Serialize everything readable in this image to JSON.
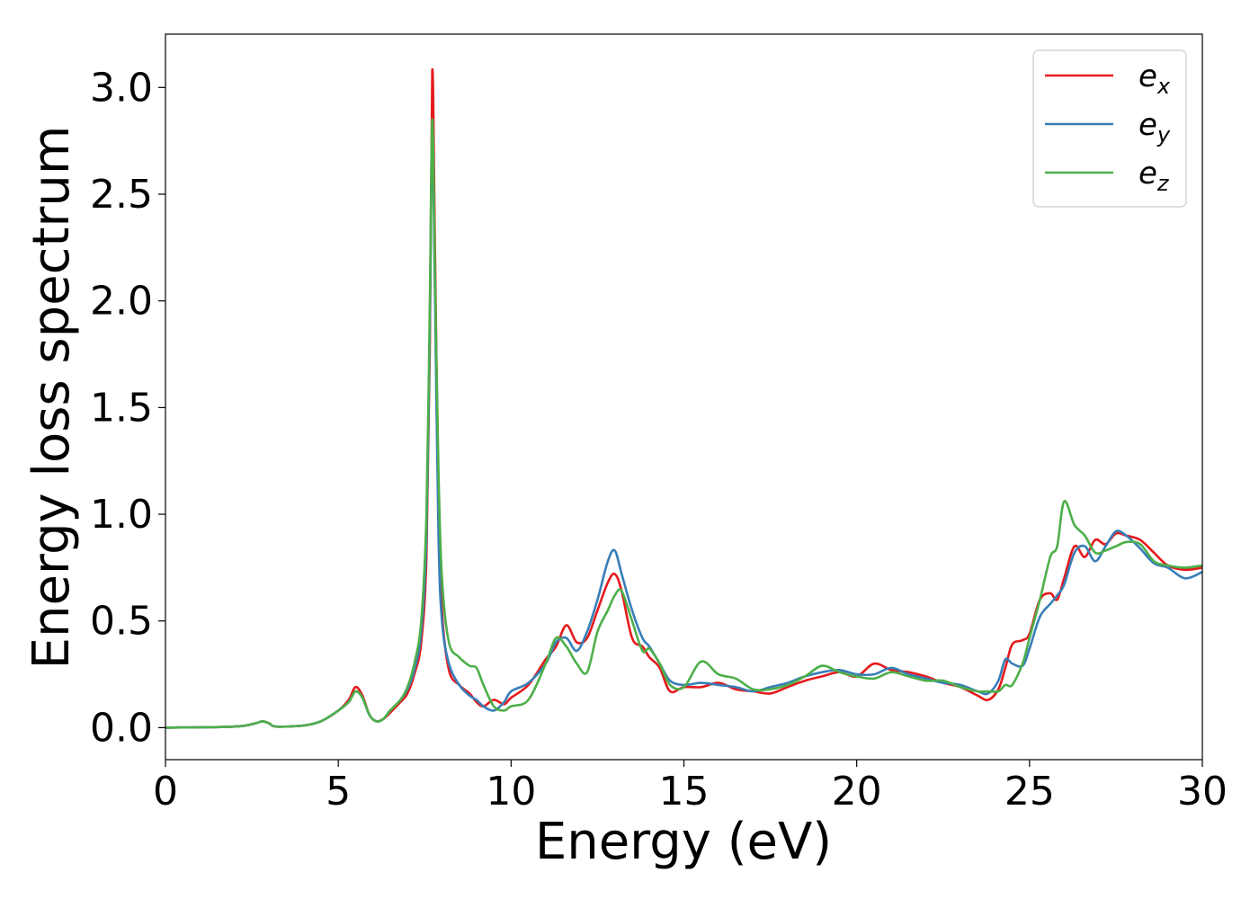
{
  "chart_data": {
    "type": "line",
    "title": "",
    "xlabel": "Energy (eV)",
    "ylabel": "Energy loss spectrum",
    "xlim": [
      0,
      30
    ],
    "ylim": [
      -0.15,
      3.25
    ],
    "xticks": [
      0,
      5,
      10,
      15,
      20,
      25,
      30
    ],
    "xtick_labels": [
      "0",
      "5",
      "10",
      "15",
      "20",
      "25",
      "30"
    ],
    "yticks": [
      0.0,
      0.5,
      1.0,
      1.5,
      2.0,
      2.5,
      3.0
    ],
    "ytick_labels": [
      "0.0",
      "0.5",
      "1.0",
      "1.5",
      "2.0",
      "2.5",
      "3.0"
    ],
    "grid": false,
    "legend_position": "top-right",
    "series": [
      {
        "name": "e",
        "subscript": "x",
        "color": "#e41a1c",
        "x": [
          0,
          2.0,
          2.6,
          2.8,
          3.0,
          3.2,
          4.0,
          4.5,
          5.0,
          5.3,
          5.5,
          5.7,
          5.9,
          6.1,
          6.3,
          6.5,
          6.8,
          7.0,
          7.2,
          7.4,
          7.55,
          7.65,
          7.72,
          7.8,
          7.9,
          8.0,
          8.2,
          8.5,
          8.8,
          9.0,
          9.2,
          9.5,
          9.8,
          10.0,
          10.5,
          11.0,
          11.3,
          11.6,
          11.9,
          12.2,
          12.5,
          12.8,
          13.0,
          13.2,
          13.5,
          13.8,
          14.0,
          14.3,
          14.6,
          15.0,
          15.5,
          16.0,
          16.5,
          17.0,
          17.5,
          18.0,
          18.5,
          19.0,
          19.5,
          20.0,
          20.5,
          21.0,
          21.5,
          22.0,
          22.5,
          23.0,
          23.5,
          23.8,
          24.1,
          24.3,
          24.5,
          24.8,
          25.0,
          25.3,
          25.6,
          25.8,
          26.0,
          26.3,
          26.6,
          26.9,
          27.2,
          27.5,
          27.8,
          28.2,
          28.6,
          29.0,
          29.5,
          30.0
        ],
        "y": [
          0.0,
          0.005,
          0.02,
          0.03,
          0.02,
          0.005,
          0.01,
          0.03,
          0.08,
          0.13,
          0.19,
          0.15,
          0.06,
          0.03,
          0.04,
          0.07,
          0.12,
          0.16,
          0.25,
          0.4,
          0.8,
          1.8,
          3.08,
          2.2,
          1.1,
          0.55,
          0.27,
          0.2,
          0.16,
          0.12,
          0.1,
          0.13,
          0.11,
          0.14,
          0.2,
          0.32,
          0.38,
          0.48,
          0.4,
          0.42,
          0.55,
          0.68,
          0.72,
          0.64,
          0.42,
          0.38,
          0.33,
          0.28,
          0.17,
          0.19,
          0.19,
          0.21,
          0.18,
          0.17,
          0.16,
          0.19,
          0.22,
          0.24,
          0.26,
          0.24,
          0.3,
          0.27,
          0.26,
          0.24,
          0.21,
          0.19,
          0.15,
          0.13,
          0.18,
          0.28,
          0.39,
          0.41,
          0.44,
          0.6,
          0.63,
          0.6,
          0.7,
          0.85,
          0.8,
          0.88,
          0.86,
          0.91,
          0.9,
          0.88,
          0.82,
          0.76,
          0.74,
          0.75
        ]
      },
      {
        "name": "e",
        "subscript": "y",
        "color": "#377eb8",
        "x": [
          0,
          2.0,
          2.6,
          2.8,
          3.0,
          3.2,
          4.0,
          4.5,
          5.0,
          5.3,
          5.5,
          5.7,
          5.9,
          6.1,
          6.3,
          6.5,
          6.8,
          7.0,
          7.2,
          7.4,
          7.55,
          7.65,
          7.72,
          7.8,
          7.9,
          8.0,
          8.2,
          8.5,
          8.8,
          9.0,
          9.2,
          9.5,
          9.8,
          10.0,
          10.5,
          11.0,
          11.3,
          11.6,
          11.9,
          12.2,
          12.5,
          12.8,
          13.0,
          13.2,
          13.5,
          13.8,
          14.0,
          14.3,
          14.6,
          15.0,
          15.5,
          16.0,
          16.5,
          17.0,
          17.5,
          18.0,
          18.5,
          19.0,
          19.5,
          20.0,
          20.5,
          21.0,
          21.5,
          22.0,
          22.5,
          23.0,
          23.5,
          23.8,
          24.1,
          24.3,
          24.5,
          24.8,
          25.0,
          25.3,
          25.6,
          25.8,
          26.0,
          26.3,
          26.6,
          26.9,
          27.2,
          27.5,
          27.8,
          28.2,
          28.6,
          29.0,
          29.5,
          30.0
        ],
        "y": [
          0.0,
          0.005,
          0.02,
          0.03,
          0.02,
          0.005,
          0.01,
          0.03,
          0.08,
          0.12,
          0.17,
          0.14,
          0.06,
          0.03,
          0.04,
          0.08,
          0.13,
          0.18,
          0.27,
          0.45,
          0.9,
          1.9,
          2.8,
          2.0,
          0.9,
          0.5,
          0.3,
          0.2,
          0.15,
          0.13,
          0.1,
          0.08,
          0.12,
          0.17,
          0.21,
          0.3,
          0.4,
          0.42,
          0.36,
          0.45,
          0.6,
          0.78,
          0.83,
          0.72,
          0.55,
          0.42,
          0.38,
          0.3,
          0.22,
          0.2,
          0.21,
          0.2,
          0.19,
          0.17,
          0.19,
          0.21,
          0.24,
          0.26,
          0.27,
          0.25,
          0.25,
          0.28,
          0.25,
          0.23,
          0.21,
          0.2,
          0.17,
          0.16,
          0.22,
          0.32,
          0.3,
          0.29,
          0.37,
          0.52,
          0.58,
          0.62,
          0.67,
          0.82,
          0.85,
          0.78,
          0.85,
          0.92,
          0.9,
          0.84,
          0.77,
          0.75,
          0.7,
          0.73
        ]
      },
      {
        "name": "e",
        "subscript": "z",
        "color": "#4daf4a",
        "x": [
          0,
          2.0,
          2.6,
          2.8,
          3.0,
          3.2,
          4.0,
          4.5,
          5.0,
          5.3,
          5.5,
          5.7,
          5.9,
          6.1,
          6.3,
          6.5,
          6.8,
          7.0,
          7.2,
          7.4,
          7.55,
          7.65,
          7.72,
          7.8,
          7.9,
          8.0,
          8.2,
          8.5,
          8.8,
          9.0,
          9.2,
          9.5,
          9.8,
          10.0,
          10.5,
          11.0,
          11.3,
          11.6,
          11.9,
          12.2,
          12.5,
          12.8,
          13.0,
          13.2,
          13.5,
          13.8,
          14.0,
          14.3,
          14.6,
          15.0,
          15.5,
          16.0,
          16.5,
          17.0,
          17.5,
          18.0,
          18.5,
          19.0,
          19.5,
          20.0,
          20.5,
          21.0,
          21.5,
          22.0,
          22.5,
          23.0,
          23.5,
          23.8,
          24.1,
          24.3,
          24.5,
          24.8,
          25.0,
          25.3,
          25.6,
          25.8,
          26.0,
          26.3,
          26.6,
          26.9,
          27.2,
          27.5,
          27.8,
          28.2,
          28.6,
          29.0,
          29.5,
          30.0
        ],
        "y": [
          0.0,
          0.005,
          0.02,
          0.03,
          0.02,
          0.005,
          0.01,
          0.03,
          0.08,
          0.12,
          0.17,
          0.14,
          0.06,
          0.03,
          0.04,
          0.08,
          0.13,
          0.19,
          0.3,
          0.5,
          1.0,
          2.0,
          2.85,
          2.1,
          1.2,
          0.7,
          0.4,
          0.33,
          0.29,
          0.28,
          0.2,
          0.1,
          0.08,
          0.1,
          0.13,
          0.3,
          0.42,
          0.38,
          0.3,
          0.26,
          0.45,
          0.55,
          0.62,
          0.64,
          0.5,
          0.36,
          0.37,
          0.3,
          0.2,
          0.19,
          0.31,
          0.25,
          0.23,
          0.18,
          0.18,
          0.2,
          0.24,
          0.29,
          0.26,
          0.24,
          0.23,
          0.26,
          0.24,
          0.22,
          0.22,
          0.19,
          0.17,
          0.17,
          0.17,
          0.2,
          0.2,
          0.3,
          0.42,
          0.6,
          0.8,
          0.85,
          1.06,
          0.95,
          0.9,
          0.82,
          0.83,
          0.85,
          0.87,
          0.86,
          0.78,
          0.76,
          0.75,
          0.76
        ]
      }
    ]
  }
}
